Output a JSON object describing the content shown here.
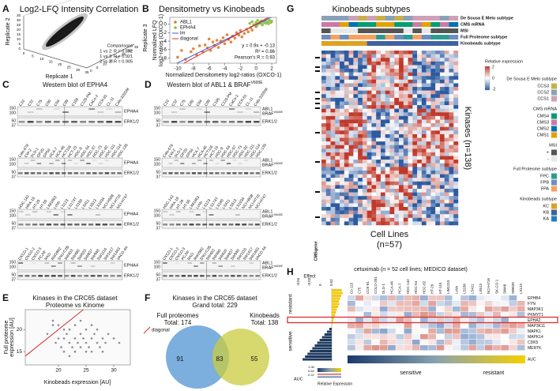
{
  "letters": [
    "A",
    "B",
    "C",
    "D",
    "E",
    "F",
    "G",
    "H"
  ],
  "panels": {
    "A": {
      "title": "Log2-LFQ Intensity Correlation",
      "x_label": "Replicate 1",
      "y_label": "Replicate 2",
      "z_label": "Replicate 3",
      "ticks": [
        0,
        5,
        10,
        15,
        20,
        25,
        30,
        35
      ],
      "legend_title": "Comparisons",
      "comparisons": [
        "1 vs 2: R = 0.892",
        "1 vs 3: R = 0.921",
        "2 vs 3: R = 0.905"
      ]
    },
    "C": {
      "title": "Western blot of EPHA4",
      "lanes": [
        [
          "C10",
          "C32",
          "C75",
          "C80",
          "C84",
          "C99",
          "C106",
          "C125-PM",
          "CaCo-2",
          "CCK-81",
          "CL-11",
          "Colo-320DM"
        ],
        [
          "Colo-678",
          "CW-2",
          "DLD-1",
          "GP2D",
          "GP5d",
          "HCA-7",
          "HCA-46",
          "HCT116",
          "HCT-15",
          "HDC-9",
          "HDC-54",
          "HDC-57",
          "HDC-73",
          "HDC-82",
          "HDC-111",
          "HDC-114",
          "HDC-135"
        ],
        [
          "HDC-142",
          "HRA-19",
          "HT-29",
          "HT-55",
          "LIM1863",
          "LoVo",
          "LS123",
          "LS174T",
          "LS180",
          "LS411",
          "LS513",
          "LS1034",
          "NCI-H508",
          "NCI-H716",
          "NCI-H747"
        ],
        [
          "OXCO-1",
          "OXCO-2",
          "OXCO-3",
          "PCJW",
          "RKO",
          "RW2982",
          "SNU-C2B",
          "SW403",
          "SW480",
          "SW620",
          "SW837",
          "SW948",
          "SW1116",
          "SW1417",
          "SW1463",
          "VACO 4A"
        ]
      ],
      "proteins": [
        "EPHA4",
        "ERK1/2"
      ],
      "mw": [
        150,
        100,
        50,
        37
      ]
    },
    "D": {
      "title": "Western blot of ABL1 & BRAF",
      "sup": "V600E",
      "proteins": [
        "ABL1",
        "BRAF",
        "ERK1/2"
      ]
    },
    "F": {
      "title": "Kinases in the CRC65 dataset",
      "subtitle": "Grand total: 229",
      "left": {
        "name": "Full proteomes",
        "total": "Total: 174"
      },
      "right": {
        "name": "Kinobeads",
        "total": "Total: 138"
      },
      "counts": [
        91,
        83,
        55
      ]
    },
    "G": {
      "title": "Kinobeads subtypes",
      "tracks": [
        "De Sousa E Melo subtype",
        "CMS mRNA",
        "MSI",
        "Full Proteome subtype",
        "Kinobeads subtype"
      ],
      "row_label": "Kinases (n=138)",
      "col_label": "Cell Lines",
      "col_n": "(n=57)",
      "cms_label": "CMSgene",
      "expr_title": "Relative expression",
      "expr_ticks": [
        2,
        0,
        -2
      ],
      "legends": [
        {
          "title": "De Sousa E Melo subtype",
          "items": [
            "CCS3",
            "CCS2",
            "CCS1"
          ]
        },
        {
          "title": "CMS mRNA",
          "items": [
            "CMS4",
            "CMS3",
            "CMS2",
            "CMS1"
          ]
        },
        {
          "title": "MSI",
          "items": [
            "+",
            "-"
          ]
        },
        {
          "title": "Full Proteome subtype",
          "items": [
            "FPC",
            "FPB",
            "FPA"
          ]
        },
        {
          "title": "Kinobeads subtype",
          "items": [
            "KC",
            "KB",
            "KA"
          ]
        }
      ]
    },
    "H": {
      "title": "cetuximab (n = 52 cell lines; MEDICO dataset)",
      "effect_label": "Effect",
      "effect_ticks": [
        -0.04,
        -0.02,
        0,
        0.02
      ],
      "genes": [
        "EPHB4",
        "FYN",
        "MAP3K1",
        "PKMYT1",
        "EPHA2",
        "MAP3K11",
        "MAPK1",
        "MAPK14",
        "CDK5",
        "MERTK"
      ],
      "auc_label": "AUC",
      "columns": [
        "Co-115",
        "C75",
        "CCK-81",
        "COLO-201",
        "DLD-1",
        "HCA-46",
        "HCA-7",
        "HDC-142",
        "HDC-54",
        "HDC-82",
        "HT-29",
        "HT-115",
        "LIM1215",
        "LoVo",
        "LS180",
        "LS411",
        "LS513",
        "NCI-H716",
        "SK-CO-1",
        "SW48",
        "SW620",
        "LS123"
      ],
      "side_resistant": "resistant",
      "side_sensitive": "sensitive",
      "bottom_sensitive": "sensitive",
      "bottom_resistant": "resistant",
      "auc_ticks": [
        "1.06",
        "0.64",
        "0.22"
      ],
      "expr_label": "Relative Expression"
    }
  },
  "chart_data": [
    {
      "type": "scatter",
      "title": "Densitometry vs Kinobeads",
      "x_label": "Normalized Densitometry log2-ratios (OXCO-1)",
      "y_label": [
        "Normalized LFQ",
        "log2-ratios (OXCO-1)"
      ],
      "xlim": [
        -11,
        2.6
      ],
      "ylim": [
        -9.2,
        1.6
      ],
      "xticks": [
        -10,
        -8,
        -6,
        -4,
        -2,
        0,
        2
      ],
      "yticks": [
        -8,
        -6,
        -4,
        -2,
        0
      ],
      "annotations": [
        "y = 0.9x + -0.13",
        "R² = 0.86",
        "Pearson's R = 0.93"
      ],
      "series": [
        {
          "name": "ABL1",
          "color": "#e07b28",
          "style": "points",
          "x": [
            -10,
            -9.5,
            -9,
            -8.3,
            -8,
            -7.6,
            -7.2,
            -6.8,
            -6.5,
            -6.2,
            -6,
            -5.8,
            -5.5,
            -5.3,
            -5,
            -4.8,
            -4.5,
            -4.2,
            -4,
            -3.7,
            -3.5,
            -3.2,
            -3,
            -2.7,
            -2.5,
            -2.2,
            -2,
            -1.8,
            -1.5,
            -1.2,
            -1,
            -0.7,
            -0.5,
            0
          ],
          "y": [
            -7.8,
            -6.2,
            -8.3,
            -6.5,
            -5.8,
            -7.2,
            -5.1,
            -6.5,
            -4.9,
            -5.6,
            -3.5,
            -6.2,
            -4.2,
            -5,
            -3.8,
            -5.5,
            -4,
            -3.2,
            -4.6,
            -2.5,
            -3.6,
            -4.2,
            -2.8,
            -3.3,
            -2,
            -2.6,
            -1.5,
            -3,
            -2.2,
            -1.2,
            -1.8,
            -0.8,
            -1.4,
            -0.6
          ]
        },
        {
          "name": "EPHA4",
          "color": "#8cbf3f",
          "style": "points",
          "x": [
            -0.8,
            -0.5,
            -0.3,
            0,
            0.2,
            0.3,
            0.5,
            0.7,
            0.8,
            1,
            1.1,
            1.3,
            1.5,
            1.7,
            1.9,
            2,
            0.1,
            0.6,
            1.2,
            1.6
          ],
          "y": [
            0.2,
            0.6,
            -0.1,
            0.4,
            0.9,
            0.1,
            0.5,
            0.8,
            -0.2,
            0.3,
            0.7,
            0.2,
            0.6,
            0.9,
            0.4,
            0.7,
            -0.3,
            0.2,
            1,
            0.1
          ]
        },
        {
          "name": "lm",
          "color": "#3b5bd6",
          "style": "line",
          "x": [
            -11,
            2.6
          ],
          "y": [
            -10.03,
            2.21
          ]
        },
        {
          "name": "diagonal",
          "color": "#d9302c",
          "style": "line",
          "x": [
            -9.2,
            1.6
          ],
          "y": [
            -9.2,
            1.6
          ]
        }
      ]
    },
    {
      "type": "scatter",
      "title": "Kinases in the CRC65 dataset",
      "subtitle": "Proteome vs Kinome",
      "x_label": "Kinobeads expression [AU]",
      "y_label": [
        "Full proteome",
        "expression [AU]"
      ],
      "xlim": [
        14,
        33
      ],
      "ylim": [
        12,
        24.5
      ],
      "xticks": [
        20,
        25,
        30
      ],
      "yticks": [
        15,
        20
      ],
      "series": [
        {
          "name": "kinases",
          "color": "#333333",
          "style": "points",
          "x": [
            18,
            19,
            19.5,
            20,
            20.5,
            21,
            21,
            21.5,
            22,
            22,
            22.5,
            23,
            23,
            23.5,
            24,
            24,
            24.5,
            25,
            25,
            25.5,
            26,
            26,
            26.5,
            27,
            27,
            27.5,
            28,
            28.5,
            29,
            30,
            31,
            19,
            20,
            22,
            23,
            25,
            26,
            28,
            21,
            24
          ],
          "y": [
            19,
            21,
            17,
            18,
            16,
            18,
            15,
            19,
            17,
            20,
            16,
            18,
            15,
            17,
            19,
            16,
            18,
            17,
            20,
            16,
            18,
            15,
            19,
            17,
            20,
            16,
            18,
            17,
            19,
            18,
            17,
            22,
            21,
            14,
            21,
            15,
            21,
            15,
            20,
            22
          ]
        },
        {
          "name": "diagonal",
          "color": "#d9302c",
          "style": "line",
          "legend": true,
          "x": [
            14,
            24.5
          ],
          "y": [
            14,
            24.5
          ]
        }
      ]
    }
  ]
}
